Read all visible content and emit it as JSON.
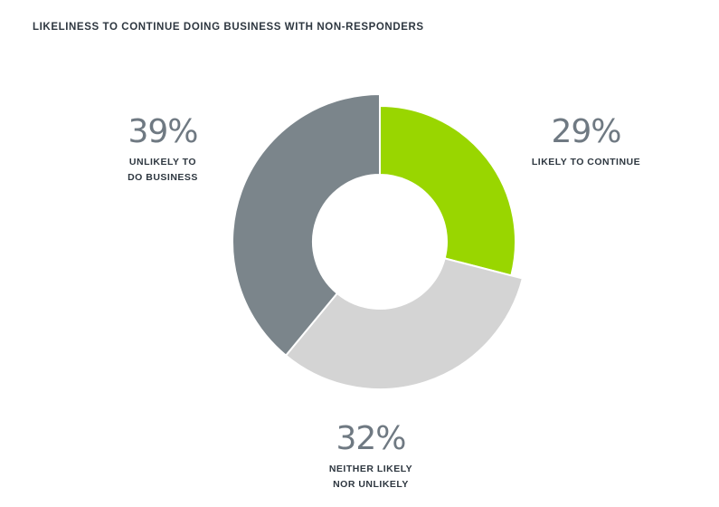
{
  "chart_data": {
    "type": "pie",
    "title": "LIKELINESS TO CONTINUE DOING BUSINESS WITH NON-RESPONDERS",
    "donut": true,
    "slices": [
      {
        "label_line1": "LIKELY TO CONTINUE",
        "label_line2": "",
        "value": 29,
        "value_text": "29%",
        "color": "#99d600"
      },
      {
        "label_line1": "NEITHER LIKELY",
        "label_line2": "NOR UNLIKELY",
        "value": 32,
        "value_text": "32%",
        "color": "#d4d4d4"
      },
      {
        "label_line1": "UNLIKELY TO",
        "label_line2": "DO BUSINESS",
        "value": 39,
        "value_text": "39%",
        "color": "#7b858b"
      }
    ]
  }
}
